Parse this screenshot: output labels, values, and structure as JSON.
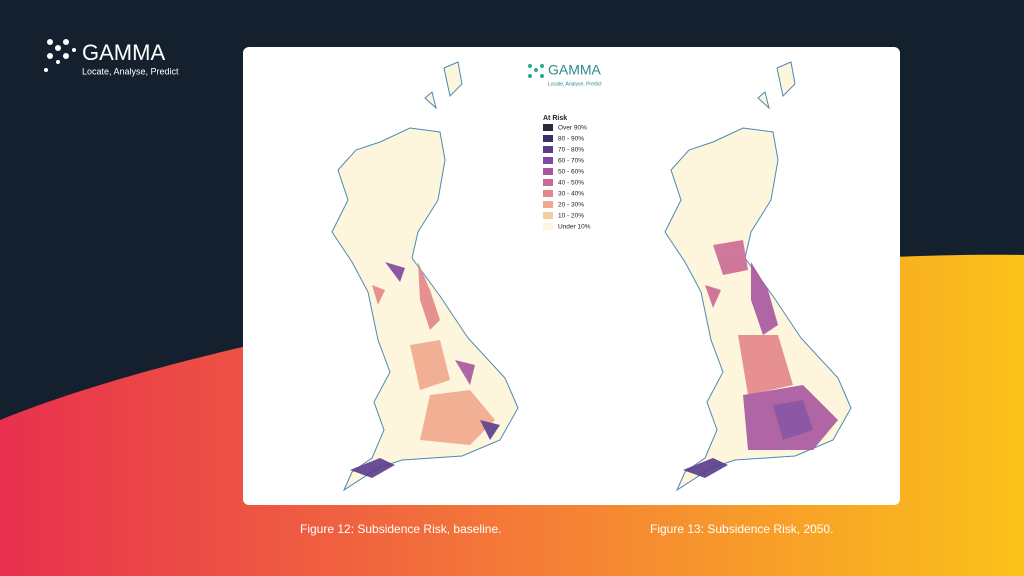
{
  "header": {
    "logo": "GAMMA",
    "tagline": "Locate, Analyse, Predict"
  },
  "panel": {
    "logo": "GAMMA",
    "tagline": "Locate, Analyse, Predict",
    "legend": {
      "title": "At Risk",
      "items": [
        {
          "label": "Over 90%",
          "color": "#2b2a3a"
        },
        {
          "label": "80 - 90%",
          "color": "#3b2f6b"
        },
        {
          "label": "70 - 80%",
          "color": "#5a3b8c"
        },
        {
          "label": "60 - 70%",
          "color": "#8048a0"
        },
        {
          "label": "50 - 60%",
          "color": "#a8579f"
        },
        {
          "label": "40 - 50%",
          "color": "#cb6a95"
        },
        {
          "label": "30 - 40%",
          "color": "#e4868a"
        },
        {
          "label": "20 - 30%",
          "color": "#f0a88c"
        },
        {
          "label": "10 - 20%",
          "color": "#f7cca4"
        },
        {
          "label": "Under 10%",
          "color": "#fdf6dc"
        }
      ]
    }
  },
  "captions": [
    "Figure 12: Subsidence Risk, baseline.",
    "Figure 13: Subsidence Risk, 2050."
  ]
}
